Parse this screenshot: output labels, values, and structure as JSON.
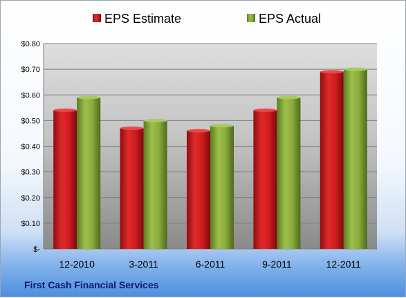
{
  "chart_data": {
    "type": "bar",
    "categories": [
      "12-2010",
      "3-2011",
      "6-2011",
      "9-2011",
      "12-2011"
    ],
    "series": [
      {
        "name": "EPS Estimate",
        "color": "#c8161a",
        "values": [
          0.54,
          0.47,
          0.46,
          0.54,
          0.69
        ]
      },
      {
        "name": "EPS Actual",
        "color": "#86a83a",
        "values": [
          0.59,
          0.5,
          0.48,
          0.59,
          0.7
        ]
      }
    ],
    "ylim": [
      0,
      0.8
    ],
    "yticks": [
      0,
      0.1,
      0.2,
      0.3,
      0.4,
      0.5,
      0.6,
      0.7,
      0.8
    ],
    "ytick_labels": [
      "$-",
      "$0.10",
      "$0.20",
      "$0.30",
      "$0.40",
      "$0.50",
      "$0.60",
      "$0.70",
      "$0.80"
    ],
    "grid": true,
    "legend_position": "top",
    "footer": "First Cash Financial Services"
  }
}
